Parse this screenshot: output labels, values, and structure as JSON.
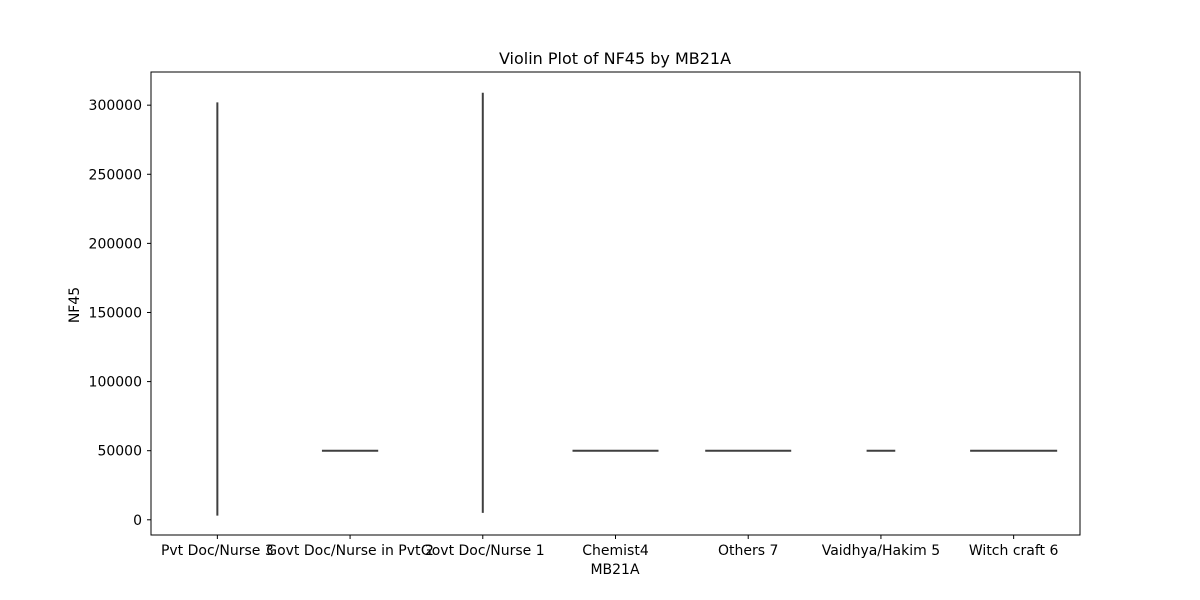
{
  "chart_data": {
    "type": "violin",
    "title": "Violin Plot of NF45 by MB21A",
    "xlabel": "MB21A",
    "ylabel": "NF45",
    "categories": [
      "Pvt Doc/Nurse 3",
      "Govt Doc/Nurse in Pvt 2",
      "Govt Doc/Nurse 1",
      "Chemist4",
      "Others 7",
      "Vaidhya/Hakim 5",
      "Witch craft 6"
    ],
    "yticks": [
      0,
      50000,
      100000,
      150000,
      200000,
      250000,
      300000
    ],
    "ylim": [
      -11000,
      324000
    ],
    "violins": [
      {
        "category": "Pvt Doc/Nurse 3",
        "min": 3000,
        "max": 302000,
        "main_value": 50000,
        "relative_width": 0
      },
      {
        "category": "Govt Doc/Nurse in Pvt 2",
        "min": 50000,
        "max": 50000,
        "main_value": 50000,
        "relative_width": 0.53
      },
      {
        "category": "Govt Doc/Nurse 1",
        "min": 5000,
        "max": 309000,
        "main_value": 50000,
        "relative_width": 0
      },
      {
        "category": "Chemist4",
        "min": 50000,
        "max": 50000,
        "main_value": 50000,
        "relative_width": 0.81
      },
      {
        "category": "Others 7",
        "min": 50000,
        "max": 50000,
        "main_value": 50000,
        "relative_width": 0.81
      },
      {
        "category": "Vaidhya/Hakim 5",
        "min": 50000,
        "max": 50000,
        "main_value": 50000,
        "relative_width": 0.27
      },
      {
        "category": "Witch craft 6",
        "min": 50000,
        "max": 50000,
        "main_value": 50000,
        "relative_width": 0.82
      }
    ],
    "grid": false,
    "colors": {
      "line": "#3f3f3f",
      "axis": "#000000"
    }
  }
}
